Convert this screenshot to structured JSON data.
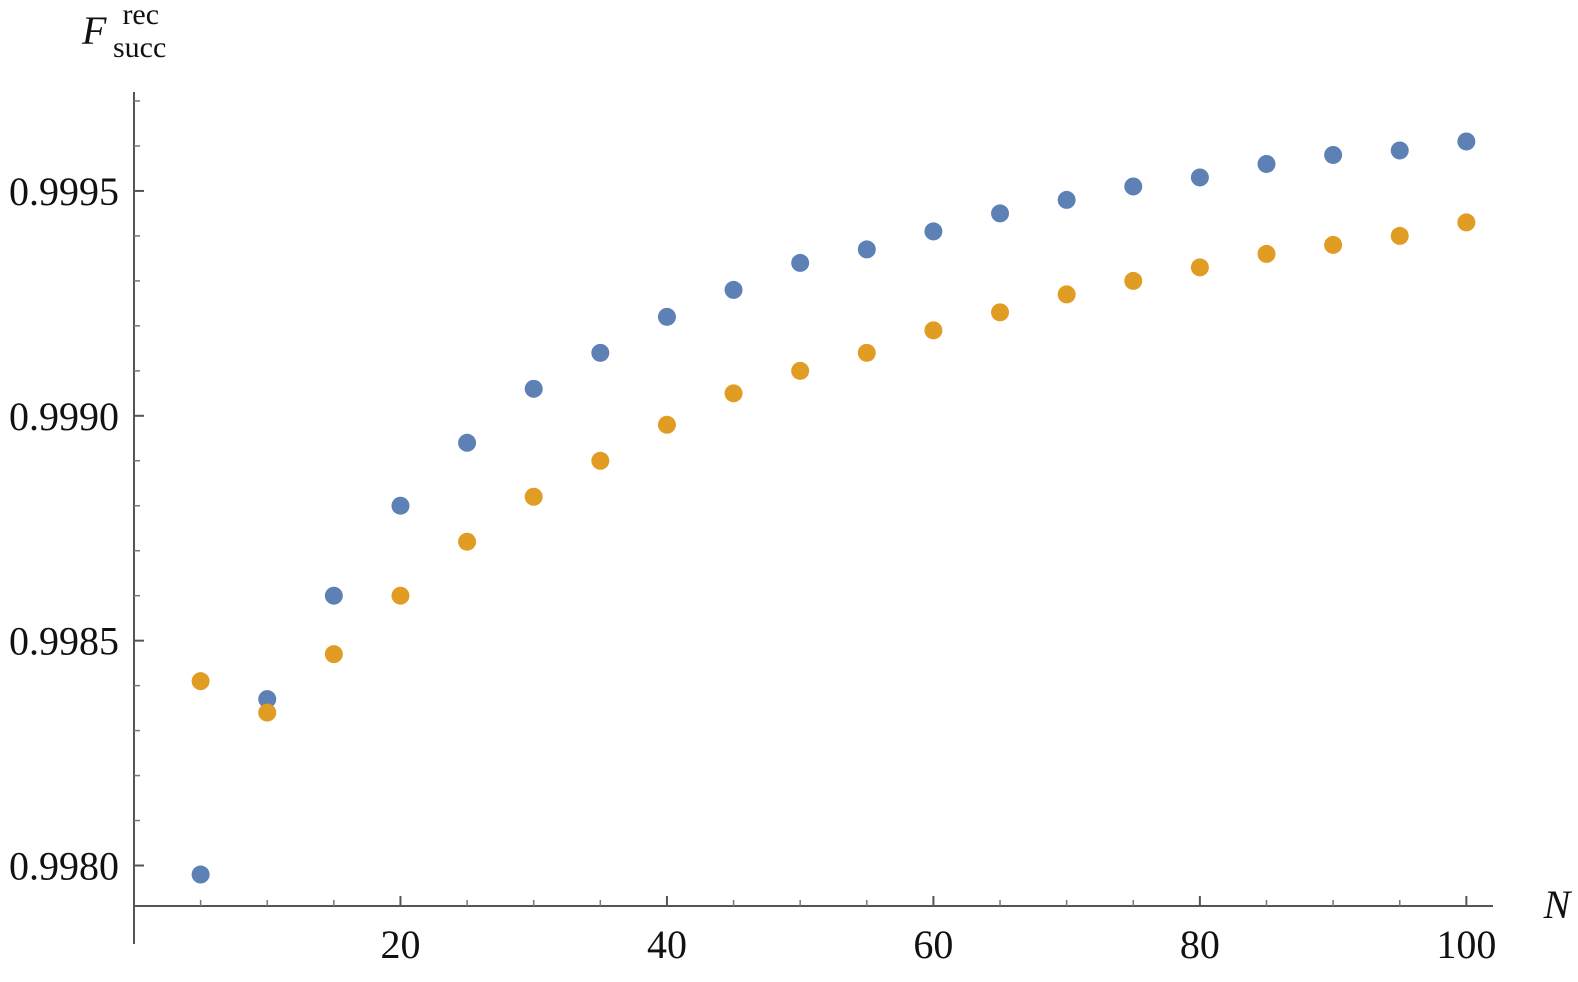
{
  "chart_data": {
    "type": "scatter",
    "title": "",
    "xlabel": "N",
    "ylabel": {
      "main": "F",
      "superscript": "rec",
      "subscript": "succ"
    },
    "xlim": [
      0,
      102
    ],
    "ylim": [
      0.99791,
      0.99972
    ],
    "x_ticks": [
      20,
      40,
      60,
      80,
      100
    ],
    "x_tick_labels": [
      "20",
      "40",
      "60",
      "80",
      "100"
    ],
    "y_ticks": [
      0.998,
      0.9985,
      0.999,
      0.9995
    ],
    "y_tick_labels": [
      "0.9980",
      "0.9985",
      "0.9990",
      "0.9995"
    ],
    "grid": false,
    "legend": "none",
    "x": [
      5,
      10,
      15,
      20,
      25,
      30,
      35,
      40,
      45,
      50,
      55,
      60,
      65,
      70,
      75,
      80,
      85,
      90,
      95,
      100
    ],
    "series": [
      {
        "color": "#5e81b5",
        "values": [
          0.99798,
          0.99837,
          0.9986,
          0.9988,
          0.99894,
          0.99906,
          0.99914,
          0.99922,
          0.99928,
          0.99934,
          0.99937,
          0.99941,
          0.99945,
          0.99948,
          0.99951,
          0.99953,
          0.99956,
          0.99958,
          0.99959,
          0.99961
        ]
      },
      {
        "color": "#e19c24",
        "values": [
          0.99841,
          0.99834,
          0.99847,
          0.9986,
          0.99872,
          0.99882,
          0.9989,
          0.99898,
          0.99905,
          0.9991,
          0.99914,
          0.99919,
          0.99923,
          0.99927,
          0.9993,
          0.99933,
          0.99936,
          0.99938,
          0.9994,
          0.99943
        ]
      }
    ]
  }
}
